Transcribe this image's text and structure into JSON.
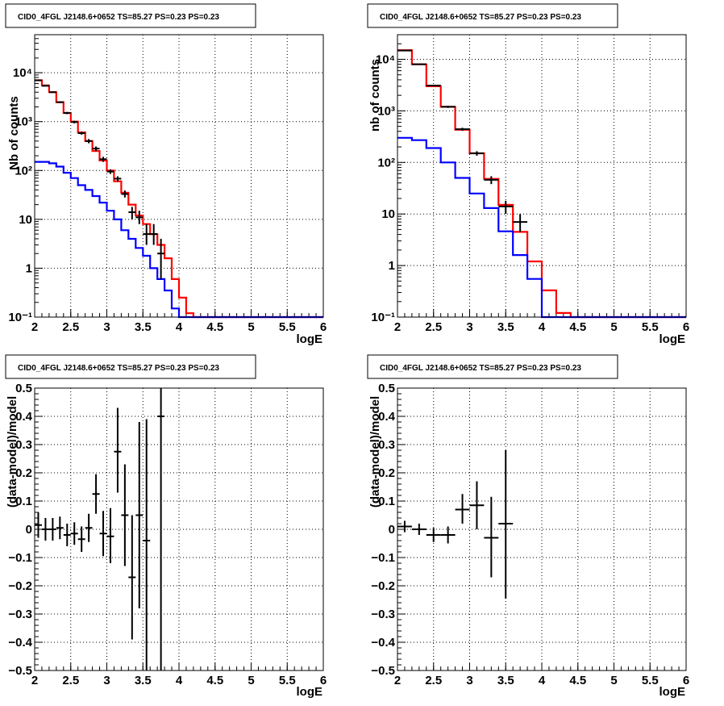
{
  "chart_data": [
    {
      "type": "line",
      "title": "CID0_4FGL J2148.6+0652 TS=85.27 PS=0.23 PS=0.23",
      "xlabel": "logE",
      "ylabel": "Nb of counts",
      "yscale": "log",
      "xlim": [
        2,
        6
      ],
      "ylim": [
        0.1,
        60000
      ],
      "grid": true,
      "xticks": [
        "2",
        "2.5",
        "3",
        "3.5",
        "4",
        "4.5",
        "5",
        "5.5",
        "6"
      ],
      "yticks": [
        {
          "v": 0.1,
          "label": "10⁻¹"
        },
        {
          "v": 1,
          "label": "1"
        },
        {
          "v": 10,
          "label": "10"
        },
        {
          "v": 100,
          "label": "10²"
        },
        {
          "v": 1000,
          "label": "10³"
        },
        {
          "v": 10000,
          "label": "10⁴"
        }
      ],
      "bin_edges": [
        2.0,
        2.1,
        2.2,
        2.3,
        2.4,
        2.5,
        2.6,
        2.7,
        2.8,
        2.9,
        3.0,
        3.1,
        3.2,
        3.3,
        3.4,
        3.5,
        3.6,
        3.7,
        3.8,
        3.9,
        4.0,
        4.1,
        4.2,
        4.3,
        4.4,
        4.5,
        4.6,
        4.7,
        4.8,
        4.9,
        5.0,
        5.1,
        5.2,
        5.3,
        5.4,
        5.5,
        5.6,
        5.7,
        5.8,
        5.9,
        6.0
      ],
      "series": [
        {
          "color": "#ff0000",
          "style": "step",
          "values": [
            7000,
            5500,
            4000,
            2500,
            1500,
            1000,
            600,
            400,
            250,
            160,
            100,
            60,
            35,
            20,
            12,
            8,
            5,
            3,
            1.6,
            0.6,
            0.25,
            0.12,
            0.1,
            0.1,
            0.1,
            0.1,
            0.1,
            0.1,
            0.1,
            0.1,
            0.1,
            0.1,
            0.1,
            0.1,
            0.1,
            0.1,
            0.1,
            0.1,
            0.1,
            0.1
          ]
        },
        {
          "color": "#0000ff",
          "style": "step",
          "values": [
            150,
            150,
            140,
            120,
            90,
            70,
            50,
            40,
            30,
            22,
            15,
            10,
            6,
            4,
            2.6,
            1.8,
            1,
            0.6,
            0.35,
            0.15,
            0.1,
            0.1,
            0.1,
            0.1,
            0.1,
            0.1,
            0.1,
            0.1,
            0.1,
            0.1,
            0.1,
            0.1,
            0.1,
            0.1,
            0.1,
            0.1,
            0.1,
            0.1,
            0.1,
            0.1
          ]
        },
        {
          "color": "#000000",
          "style": "points",
          "points": [
            {
              "x": 2.05,
              "y": 7000,
              "ylo": 6800,
              "yhi": 7200
            },
            {
              "x": 2.15,
              "y": 5400,
              "ylo": 5250,
              "yhi": 5550
            },
            {
              "x": 2.25,
              "y": 4000,
              "ylo": 3870,
              "yhi": 4130
            },
            {
              "x": 2.35,
              "y": 2500,
              "ylo": 2400,
              "yhi": 2600
            },
            {
              "x": 2.45,
              "y": 1500,
              "ylo": 1420,
              "yhi": 1580
            },
            {
              "x": 2.55,
              "y": 980,
              "ylo": 920,
              "yhi": 1040
            },
            {
              "x": 2.65,
              "y": 580,
              "ylo": 540,
              "yhi": 620
            },
            {
              "x": 2.75,
              "y": 400,
              "ylo": 360,
              "yhi": 440
            },
            {
              "x": 2.85,
              "y": 280,
              "ylo": 250,
              "yhi": 310
            },
            {
              "x": 2.95,
              "y": 170,
              "ylo": 150,
              "yhi": 190
            },
            {
              "x": 3.05,
              "y": 95,
              "ylo": 85,
              "yhi": 105
            },
            {
              "x": 3.15,
              "y": 68,
              "ylo": 60,
              "yhi": 76
            },
            {
              "x": 3.25,
              "y": 33,
              "ylo": 28,
              "yhi": 39
            },
            {
              "x": 3.35,
              "y": 14,
              "ylo": 10,
              "yhi": 18
            },
            {
              "x": 3.45,
              "y": 11,
              "ylo": 8,
              "yhi": 15
            },
            {
              "x": 3.55,
              "y": 5,
              "ylo": 3,
              "yhi": 8
            },
            {
              "x": 3.65,
              "y": 5,
              "ylo": 3,
              "yhi": 8
            },
            {
              "x": 3.75,
              "y": 2,
              "ylo": 0.6,
              "yhi": 4
            }
          ]
        }
      ]
    },
    {
      "type": "line",
      "title": "CID0_4FGL J2148.6+0652 TS=85.27 PS=0.23 PS=0.23",
      "xlabel": "logE",
      "ylabel": "nb of counts",
      "yscale": "log",
      "xlim": [
        2,
        6
      ],
      "ylim": [
        0.1,
        30000
      ],
      "grid": true,
      "xticks": [
        "2",
        "2.5",
        "3",
        "3.5",
        "4",
        "4.5",
        "5",
        "5.5",
        "6"
      ],
      "yticks": [
        {
          "v": 0.1,
          "label": "10⁻¹"
        },
        {
          "v": 1,
          "label": "1"
        },
        {
          "v": 10,
          "label": "10"
        },
        {
          "v": 100,
          "label": "10²"
        },
        {
          "v": 1000,
          "label": "10³"
        },
        {
          "v": 10000,
          "label": "10⁴"
        }
      ],
      "bin_edges": [
        2.0,
        2.2,
        2.4,
        2.6,
        2.8,
        3.0,
        3.2,
        3.4,
        3.6,
        3.8,
        4.0,
        4.2,
        4.4,
        4.6,
        4.8,
        5.0,
        5.2,
        5.4,
        5.6,
        5.8,
        6.0
      ],
      "series": [
        {
          "color": "#ff0000",
          "style": "step",
          "values": [
            15000,
            8000,
            3000,
            1200,
            430,
            150,
            48,
            15,
            4.5,
            1.2,
            0.33,
            0.12,
            0.1,
            0.1,
            0.1,
            0.1,
            0.1,
            0.1,
            0.1,
            0.1
          ]
        },
        {
          "color": "#0000ff",
          "style": "step",
          "values": [
            300,
            270,
            190,
            100,
            50,
            25,
            13,
            4.6,
            1.6,
            0.55,
            0.1,
            0.1,
            0.1,
            0.1,
            0.1,
            0.1,
            0.1,
            0.1,
            0.1,
            0.1
          ]
        },
        {
          "color": "#000000",
          "style": "points",
          "points": [
            {
              "x": 2.1,
              "y": 14800,
              "ylo": 14600,
              "yhi": 15000
            },
            {
              "x": 2.3,
              "y": 8000,
              "ylo": 7850,
              "yhi": 8150
            },
            {
              "x": 2.5,
              "y": 3100,
              "ylo": 3000,
              "yhi": 3200
            },
            {
              "x": 2.7,
              "y": 1200,
              "ylo": 1140,
              "yhi": 1260
            },
            {
              "x": 2.9,
              "y": 440,
              "ylo": 410,
              "yhi": 470
            },
            {
              "x": 3.1,
              "y": 150,
              "ylo": 135,
              "yhi": 165
            },
            {
              "x": 3.3,
              "y": 46,
              "ylo": 38,
              "yhi": 54
            },
            {
              "x": 3.5,
              "y": 14,
              "ylo": 10,
              "yhi": 18
            },
            {
              "x": 3.7,
              "y": 7,
              "ylo": 4.5,
              "yhi": 10
            }
          ]
        }
      ]
    },
    {
      "type": "scatter",
      "title": "CID0_4FGL J2148.6+0652 TS=85.27 PS=0.23 PS=0.23",
      "xlabel": "logE",
      "ylabel": "(data-model)/model",
      "yscale": "linear",
      "xlim": [
        2,
        6
      ],
      "ylim": [
        -0.5,
        0.5
      ],
      "grid": true,
      "xticks": [
        "2",
        "2.5",
        "3",
        "3.5",
        "4",
        "4.5",
        "5",
        "5.5",
        "6"
      ],
      "yticks": [
        {
          "v": -0.5,
          "label": "−0.5"
        },
        {
          "v": -0.4,
          "label": "−0.4"
        },
        {
          "v": -0.3,
          "label": "−0.3"
        },
        {
          "v": -0.2,
          "label": "−0.2"
        },
        {
          "v": -0.1,
          "label": "−0.1"
        },
        {
          "v": 0,
          "label": "0"
        },
        {
          "v": 0.1,
          "label": "0.1"
        },
        {
          "v": 0.2,
          "label": "0.2"
        },
        {
          "v": 0.3,
          "label": "0.3"
        },
        {
          "v": 0.4,
          "label": "0.4"
        },
        {
          "v": 0.5,
          "label": "0.5"
        }
      ],
      "series": [
        {
          "color": "#000000",
          "style": "points",
          "xerr": 0.05,
          "points": [
            {
              "x": 2.05,
              "y": 0.015,
              "ylo": -0.03,
              "yhi": 0.06
            },
            {
              "x": 2.15,
              "y": 0.0,
              "ylo": -0.04,
              "yhi": 0.04
            },
            {
              "x": 2.25,
              "y": 0.0,
              "ylo": -0.04,
              "yhi": 0.04
            },
            {
              "x": 2.35,
              "y": 0.005,
              "ylo": -0.035,
              "yhi": 0.045
            },
            {
              "x": 2.45,
              "y": -0.02,
              "ylo": -0.06,
              "yhi": 0.02
            },
            {
              "x": 2.55,
              "y": -0.015,
              "ylo": -0.055,
              "yhi": 0.025
            },
            {
              "x": 2.65,
              "y": -0.035,
              "ylo": -0.08,
              "yhi": 0.01
            },
            {
              "x": 2.75,
              "y": 0.005,
              "ylo": -0.045,
              "yhi": 0.055
            },
            {
              "x": 2.85,
              "y": 0.125,
              "ylo": 0.055,
              "yhi": 0.195
            },
            {
              "x": 2.95,
              "y": -0.015,
              "ylo": -0.095,
              "yhi": 0.065
            },
            {
              "x": 3.05,
              "y": -0.025,
              "ylo": -0.12,
              "yhi": 0.075
            },
            {
              "x": 3.15,
              "y": 0.275,
              "ylo": 0.13,
              "yhi": 0.43
            },
            {
              "x": 3.25,
              "y": 0.05,
              "ylo": -0.13,
              "yhi": 0.23
            },
            {
              "x": 3.35,
              "y": -0.17,
              "ylo": -0.39,
              "yhi": 0.05
            },
            {
              "x": 3.45,
              "y": 0.05,
              "ylo": -0.28,
              "yhi": 0.38
            },
            {
              "x": 3.55,
              "y": -0.04,
              "ylo": -0.5,
              "yhi": 0.39
            },
            {
              "x": 3.75,
              "y": 0.4,
              "ylo": -0.5,
              "yhi": 0.5
            }
          ]
        }
      ]
    },
    {
      "type": "scatter",
      "title": "CID0_4FGL J2148.6+0652 TS=85.27 PS=0.23 PS=0.23",
      "xlabel": "logE",
      "ylabel": "(data-model)/model",
      "yscale": "linear",
      "xlim": [
        2,
        6
      ],
      "ylim": [
        -0.5,
        0.5
      ],
      "grid": true,
      "xticks": [
        "2",
        "2.5",
        "3",
        "3.5",
        "4",
        "4.5",
        "5",
        "5.5",
        "6"
      ],
      "yticks": [
        {
          "v": -0.5,
          "label": "−0.5"
        },
        {
          "v": -0.4,
          "label": "−0.4"
        },
        {
          "v": -0.3,
          "label": "−0.3"
        },
        {
          "v": -0.2,
          "label": "−0.2"
        },
        {
          "v": -0.1,
          "label": "−0.1"
        },
        {
          "v": 0,
          "label": "0"
        },
        {
          "v": 0.1,
          "label": "0.1"
        },
        {
          "v": 0.2,
          "label": "0.2"
        },
        {
          "v": 0.3,
          "label": "0.3"
        },
        {
          "v": 0.4,
          "label": "0.4"
        },
        {
          "v": 0.5,
          "label": "0.5"
        }
      ],
      "series": [
        {
          "color": "#000000",
          "style": "points",
          "xerr": 0.1,
          "points": [
            {
              "x": 2.1,
              "y": 0.01,
              "ylo": -0.01,
              "yhi": 0.03
            },
            {
              "x": 2.3,
              "y": 0.0,
              "ylo": -0.02,
              "yhi": 0.02
            },
            {
              "x": 2.5,
              "y": -0.02,
              "ylo": -0.045,
              "yhi": 0.005
            },
            {
              "x": 2.7,
              "y": -0.02,
              "ylo": -0.05,
              "yhi": 0.01
            },
            {
              "x": 2.9,
              "y": 0.07,
              "ylo": 0.02,
              "yhi": 0.125
            },
            {
              "x": 3.1,
              "y": 0.085,
              "ylo": 0.0,
              "yhi": 0.17
            },
            {
              "x": 3.3,
              "y": -0.03,
              "ylo": -0.17,
              "yhi": 0.115
            },
            {
              "x": 3.5,
              "y": 0.02,
              "ylo": -0.245,
              "yhi": 0.28
            }
          ]
        }
      ]
    }
  ]
}
